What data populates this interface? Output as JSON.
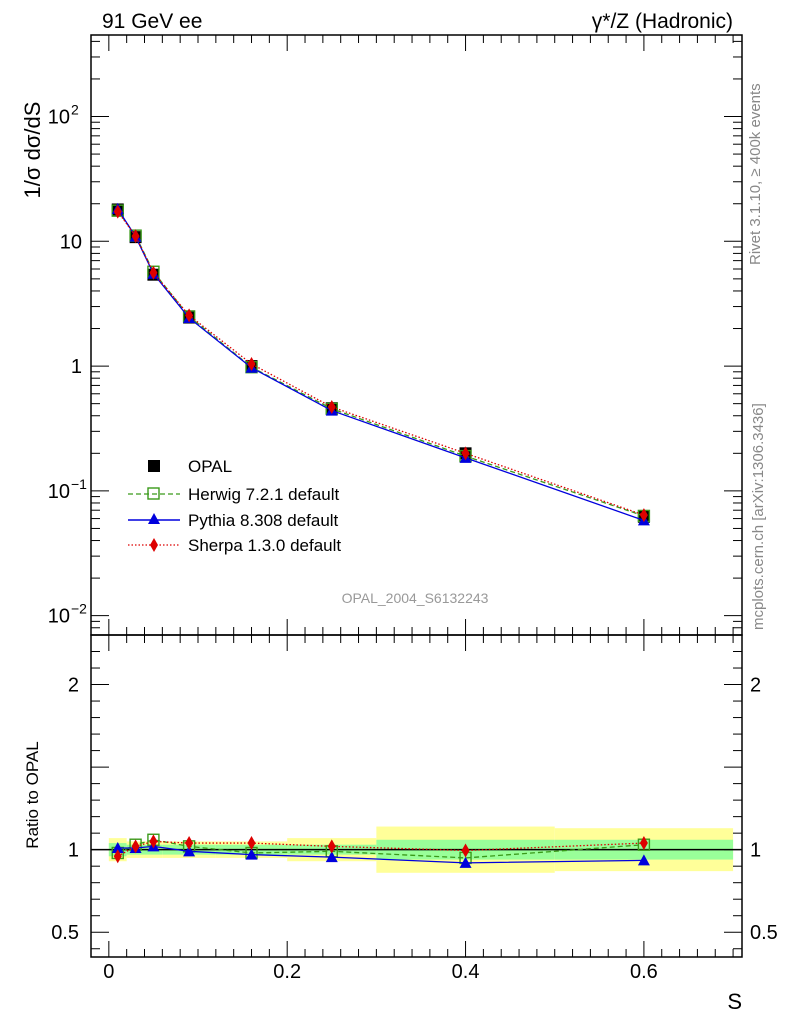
{
  "chart_data": {
    "type": "line",
    "title_left": "91 GeV ee",
    "title_right": "γ*/Z (Hadronic)",
    "side_text_top": "Rivet 3.1.10, ≥ 400k events",
    "side_text_bottom": "mcplots.cern.ch [arXiv:1306.3436]",
    "watermark": "OPAL_2004_S6132243",
    "xlabel": "S",
    "ylabel_main": "1/σ dσ/dS",
    "ylabel_ratio": "Ratio to OPAL",
    "xlim": [
      -0.02,
      0.71
    ],
    "ylim_main": [
      0.007,
      450
    ],
    "ylim_ratio": [
      0.35,
      2.3
    ],
    "x_ticks": [
      {
        "v": 0,
        "label": "0"
      },
      {
        "v": 0.2,
        "label": "0.2"
      },
      {
        "v": 0.4,
        "label": "0.4"
      },
      {
        "v": 0.6,
        "label": "0.6"
      }
    ],
    "main_y_ticks": [
      {
        "v": 100,
        "base": "10",
        "exp": "2"
      },
      {
        "v": 10,
        "base": "10",
        "exp": ""
      },
      {
        "v": 1,
        "base": "1",
        "exp": ""
      },
      {
        "v": 0.1,
        "base": "10",
        "exp": "−1"
      },
      {
        "v": 0.01,
        "base": "10",
        "exp": "−2"
      }
    ],
    "ratio_y_ticks": [
      {
        "v": 2,
        "label": "2"
      },
      {
        "v": 1,
        "label": "1"
      },
      {
        "v": 0.5,
        "label": "0.5"
      }
    ],
    "x": [
      0.01,
      0.03,
      0.05,
      0.09,
      0.16,
      0.25,
      0.4,
      0.6
    ],
    "bins": [
      [
        0.0,
        0.02
      ],
      [
        0.02,
        0.04
      ],
      [
        0.04,
        0.06
      ],
      [
        0.06,
        0.12
      ],
      [
        0.12,
        0.2
      ],
      [
        0.2,
        0.3
      ],
      [
        0.3,
        0.5
      ],
      [
        0.5,
        0.7
      ]
    ],
    "band_inner": [
      0.04,
      0.03,
      0.03,
      0.03,
      0.03,
      0.03,
      0.06,
      0.06
    ],
    "band_outer": [
      0.07,
      0.05,
      0.05,
      0.05,
      0.05,
      0.07,
      0.14,
      0.13
    ],
    "series": [
      {
        "name": "OPAL",
        "color": "#000000",
        "marker": "square-filled",
        "line": "none",
        "values": [
          18.0,
          10.8,
          5.4,
          2.45,
          1.0,
          0.46,
          0.2,
          0.062
        ]
      },
      {
        "name": "Herwig 7.2.1 default",
        "color": "#3a9a1a",
        "marker": "square-open",
        "line": "dashed",
        "values": [
          17.6,
          11.1,
          5.7,
          2.5,
          0.98,
          0.455,
          0.19,
          0.063
        ]
      },
      {
        "name": "Pythia 8.308 default",
        "color": "#0000dd",
        "marker": "triangle",
        "line": "solid",
        "values": [
          18.2,
          10.9,
          5.5,
          2.43,
          0.97,
          0.44,
          0.184,
          0.058
        ]
      },
      {
        "name": "Sherpa 1.3.0 default",
        "color": "#dd0000",
        "marker": "diamond",
        "line": "dotted",
        "values": [
          17.3,
          11.0,
          5.6,
          2.55,
          1.04,
          0.47,
          0.2,
          0.064
        ]
      }
    ],
    "ratios": [
      [
        1,
        1,
        1,
        1,
        1,
        1,
        1,
        1
      ],
      [
        0.98,
        1.03,
        1.06,
        1.02,
        0.98,
        0.99,
        0.95,
        1.03
      ],
      [
        1.01,
        1.01,
        1.02,
        0.99,
        0.97,
        0.955,
        0.92,
        0.935
      ],
      [
        0.96,
        1.02,
        1.05,
        1.04,
        1.04,
        1.02,
        0.995,
        1.04
      ]
    ]
  }
}
